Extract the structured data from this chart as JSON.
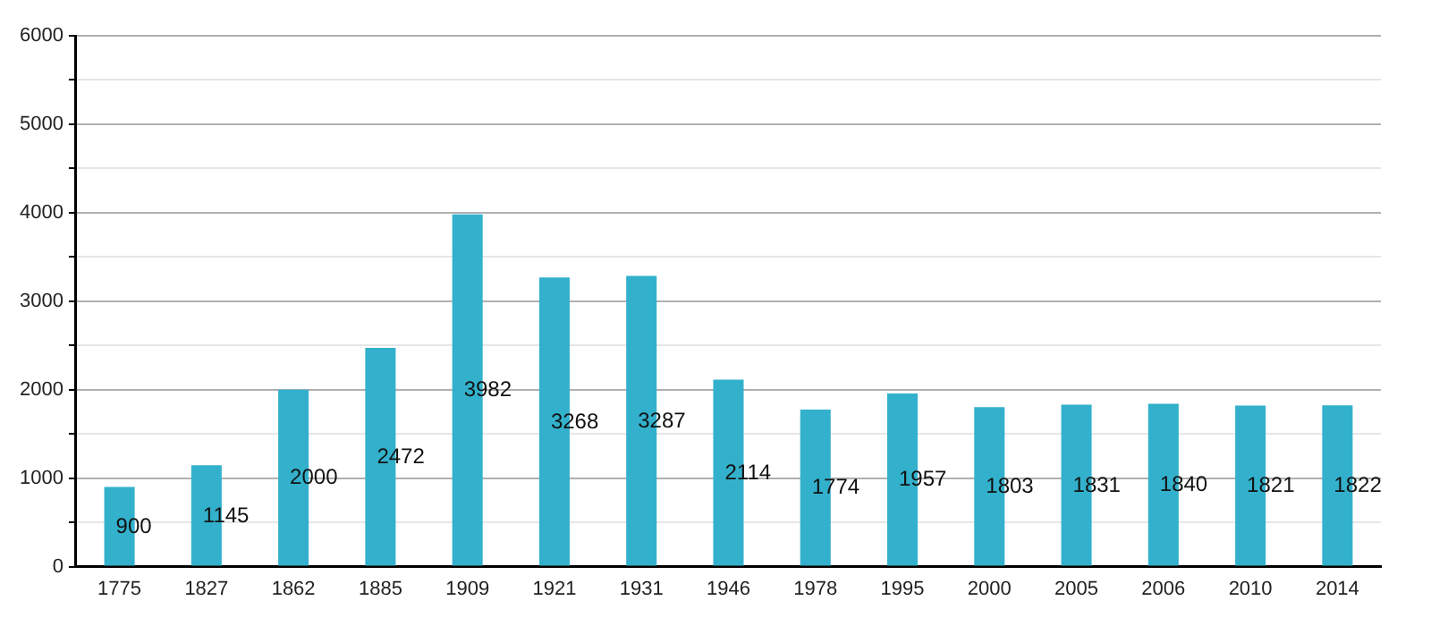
{
  "chart_data": {
    "type": "bar",
    "categories": [
      "1775",
      "1827",
      "1862",
      "1885",
      "1909",
      "1921",
      "1931",
      "1946",
      "1978",
      "1995",
      "2000",
      "2005",
      "2006",
      "2010",
      "2014"
    ],
    "values": [
      900,
      1145,
      2000,
      2472,
      3982,
      3268,
      3287,
      2114,
      1774,
      1957,
      1803,
      1831,
      1840,
      1821,
      1822
    ],
    "color": "#33b1cc",
    "ylim": [
      0,
      6000
    ],
    "yticks": [
      0,
      {
        "value": 500,
        "label": null
      },
      1000,
      {
        "value": 1500,
        "label": null
      },
      2000,
      {
        "value": 2500,
        "label": null
      },
      3000,
      {
        "value": 3500,
        "label": null
      },
      4000,
      {
        "value": 4500,
        "label": null
      },
      5000,
      {
        "value": 5500,
        "label": null
      },
      6000
    ],
    "grid": "y",
    "data_labels": true,
    "legend": false
  }
}
